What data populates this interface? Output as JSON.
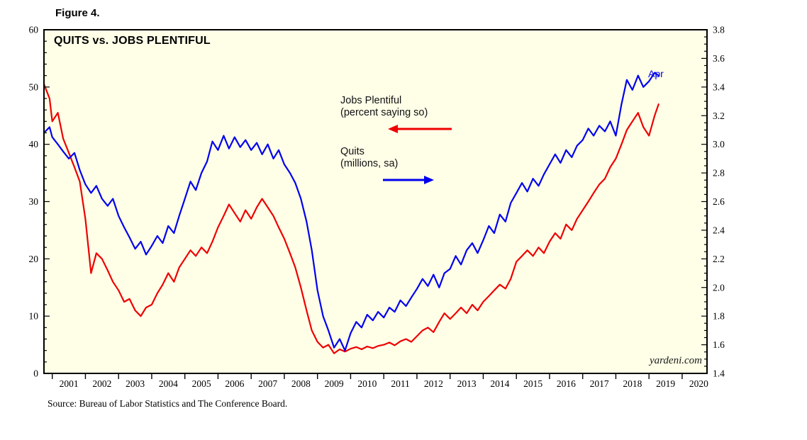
{
  "figure_label": "Figure 4.",
  "title": "QUITS vs. JOBS PLENTIFUL",
  "source": "Source: Bureau of Labor Statistics and The Conference Board.",
  "watermark": "yardeni.com",
  "end_label": "Apr",
  "annotations": {
    "jobs": {
      "line1": "Jobs Plentiful",
      "line2": "(percent saying so)"
    },
    "quits": {
      "line1": "Quits",
      "line2": "(millions, sa)"
    }
  },
  "colors": {
    "jobs_plentiful": "#EE0000",
    "quits": "#0000EE",
    "plot_bg": "#FFFFE8",
    "frame": "#000000"
  },
  "chart_data": {
    "type": "line",
    "title": "QUITS vs. JOBS PLENTIFUL",
    "grid": "off",
    "legend_position": "annotations-inside-plot",
    "x_range": [
      2000.75,
      2020.75
    ],
    "x_tick_years": [
      2001,
      2002,
      2003,
      2004,
      2005,
      2006,
      2007,
      2008,
      2009,
      2010,
      2011,
      2012,
      2013,
      2014,
      2015,
      2016,
      2017,
      2018,
      2019,
      2020
    ],
    "left_axis": {
      "label": "Jobs Plentiful (percent saying so)",
      "range": [
        0,
        60
      ],
      "ticks": [
        0,
        10,
        20,
        30,
        40,
        50,
        60
      ],
      "minor_step": 2
    },
    "right_axis": {
      "label": "Quits (millions, sa)",
      "range": [
        1.4,
        3.8
      ],
      "ticks": [
        1.4,
        1.6,
        1.8,
        2.0,
        2.2,
        2.4,
        2.6,
        2.8,
        3.0,
        3.2,
        3.4,
        3.6,
        3.8
      ],
      "minor_step": 0.05
    },
    "x": [
      2000.75,
      2000.92,
      2001,
      2001.17,
      2001.33,
      2001.5,
      2001.67,
      2001.83,
      2002,
      2002.17,
      2002.33,
      2002.5,
      2002.67,
      2002.83,
      2003,
      2003.17,
      2003.33,
      2003.5,
      2003.67,
      2003.83,
      2004,
      2004.17,
      2004.33,
      2004.5,
      2004.67,
      2004.83,
      2005,
      2005.17,
      2005.33,
      2005.5,
      2005.67,
      2005.83,
      2006,
      2006.17,
      2006.33,
      2006.5,
      2006.67,
      2006.83,
      2007,
      2007.17,
      2007.33,
      2007.5,
      2007.67,
      2007.83,
      2008,
      2008.17,
      2008.33,
      2008.5,
      2008.67,
      2008.83,
      2009,
      2009.17,
      2009.33,
      2009.5,
      2009.67,
      2009.83,
      2010,
      2010.17,
      2010.33,
      2010.5,
      2010.67,
      2010.83,
      2011,
      2011.17,
      2011.33,
      2011.5,
      2011.67,
      2011.83,
      2012,
      2012.17,
      2012.33,
      2012.5,
      2012.67,
      2012.83,
      2013,
      2013.17,
      2013.33,
      2013.5,
      2013.67,
      2013.83,
      2014,
      2014.17,
      2014.33,
      2014.5,
      2014.67,
      2014.83,
      2015,
      2015.17,
      2015.33,
      2015.5,
      2015.67,
      2015.83,
      2016,
      2016.17,
      2016.33,
      2016.5,
      2016.67,
      2016.83,
      2017,
      2017.17,
      2017.33,
      2017.5,
      2017.67,
      2017.83,
      2018,
      2018.17,
      2018.33,
      2018.5,
      2018.67,
      2018.83,
      2019,
      2019.17,
      2019.29
    ],
    "series": [
      {
        "name": "Jobs Plentiful (percent saying so)",
        "axis": "left",
        "color": "#EE0000",
        "values": [
          50.5,
          48.0,
          44.0,
          45.5,
          41.0,
          38.5,
          36.0,
          33.5,
          27.0,
          17.5,
          21.0,
          20.0,
          18.0,
          16.0,
          14.5,
          12.5,
          13.0,
          11.0,
          10.0,
          11.5,
          12.0,
          14.0,
          15.5,
          17.5,
          16.0,
          18.5,
          20.0,
          21.5,
          20.5,
          22.0,
          21.0,
          23.0,
          25.5,
          27.5,
          29.5,
          28.0,
          26.5,
          28.5,
          27.0,
          29.0,
          30.5,
          29.0,
          27.5,
          25.5,
          23.5,
          21.0,
          18.5,
          15.0,
          11.0,
          7.5,
          5.5,
          4.5,
          5.0,
          3.5,
          4.2,
          3.8,
          4.3,
          4.6,
          4.2,
          4.7,
          4.4,
          4.8,
          5.0,
          5.4,
          4.9,
          5.6,
          6.0,
          5.5,
          6.5,
          7.5,
          8.0,
          7.2,
          9.0,
          10.5,
          9.5,
          10.5,
          11.5,
          10.5,
          12.0,
          11.0,
          12.5,
          13.5,
          14.5,
          15.5,
          14.8,
          16.5,
          19.5,
          20.5,
          21.5,
          20.5,
          22.0,
          21.0,
          23.0,
          24.5,
          23.5,
          26.0,
          25.0,
          27.0,
          28.5,
          30.0,
          31.5,
          33.0,
          34.0,
          36.0,
          37.5,
          40.0,
          42.5,
          44.0,
          45.5,
          43.0,
          41.5,
          45.0,
          47.0
        ]
      },
      {
        "name": "Quits (millions, sa)",
        "axis": "right",
        "color": "#0000EE",
        "values": [
          3.08,
          3.12,
          3.05,
          3.0,
          2.95,
          2.9,
          2.94,
          2.82,
          2.72,
          2.66,
          2.71,
          2.62,
          2.57,
          2.62,
          2.5,
          2.42,
          2.35,
          2.27,
          2.32,
          2.23,
          2.29,
          2.36,
          2.31,
          2.43,
          2.38,
          2.5,
          2.62,
          2.74,
          2.68,
          2.8,
          2.88,
          3.02,
          2.96,
          3.06,
          2.97,
          3.05,
          2.98,
          3.03,
          2.96,
          3.01,
          2.93,
          3.0,
          2.9,
          2.96,
          2.86,
          2.8,
          2.73,
          2.62,
          2.46,
          2.26,
          1.98,
          1.8,
          1.7,
          1.58,
          1.64,
          1.56,
          1.68,
          1.76,
          1.72,
          1.81,
          1.77,
          1.83,
          1.79,
          1.86,
          1.83,
          1.91,
          1.87,
          1.93,
          1.99,
          2.06,
          2.01,
          2.09,
          2.0,
          2.1,
          2.13,
          2.22,
          2.16,
          2.26,
          2.31,
          2.24,
          2.33,
          2.43,
          2.38,
          2.51,
          2.46,
          2.59,
          2.66,
          2.73,
          2.67,
          2.76,
          2.71,
          2.79,
          2.86,
          2.93,
          2.87,
          2.96,
          2.91,
          2.99,
          3.03,
          3.11,
          3.06,
          3.13,
          3.09,
          3.16,
          3.06,
          3.28,
          3.45,
          3.38,
          3.48,
          3.4,
          3.44,
          3.5,
          3.48
        ]
      }
    ],
    "last_point_annotation": {
      "series": "Quits (millions, sa)",
      "label": "Apr",
      "x": 2019.29,
      "value": 3.48
    }
  }
}
